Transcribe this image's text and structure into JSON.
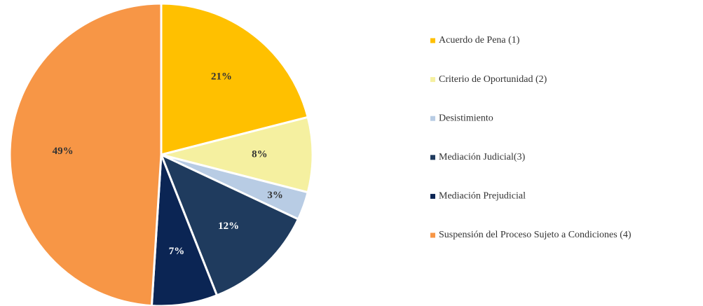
{
  "chart_data": {
    "type": "pie",
    "categories": [
      "Acuerdo de Pena (1)",
      "Criterio de Oportunidad (2)",
      "Desistimiento",
      "Mediación Judicial(3)",
      "Mediación Prejudicial",
      "Suspensión del Proceso Sujeto a Condiciones (4)"
    ],
    "values": [
      21,
      8,
      3,
      12,
      7,
      49
    ],
    "value_labels": [
      "21%",
      "8%",
      "3%",
      "12%",
      "7%",
      "49%"
    ],
    "colors": [
      "#ffc000",
      "#f5f0a0",
      "#b8cce4",
      "#1f3b5e",
      "#0b2554",
      "#f79646"
    ],
    "legend": "right"
  }
}
